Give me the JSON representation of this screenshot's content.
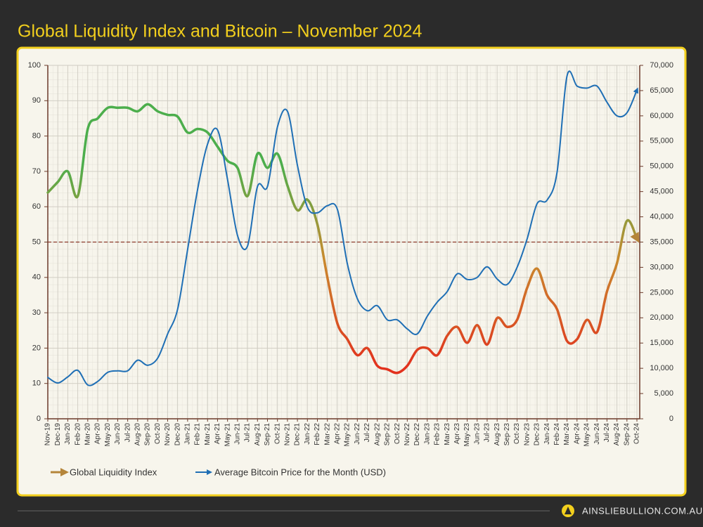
{
  "chart_data": {
    "type": "line",
    "title": "Global Liquidity Index and Bitcoin – November 2024",
    "categories": [
      "Nov-19",
      "Dec-19",
      "Jan-20",
      "Feb-20",
      "Mar-20",
      "Apr-20",
      "May-20",
      "Jun-20",
      "Jul-20",
      "Aug-20",
      "Sep-20",
      "Oct-20",
      "Nov-20",
      "Dec-20",
      "Jan-21",
      "Feb-21",
      "Mar-21",
      "Apr-21",
      "May-21",
      "Jun-21",
      "Jul-21",
      "Aug-21",
      "Sep-21",
      "Oct-21",
      "Nov-21",
      "Dec-21",
      "Jan-22",
      "Feb-22",
      "Mar-22",
      "Apr-22",
      "May-22",
      "Jun-22",
      "Jul-22",
      "Aug-22",
      "Sep-22",
      "Oct-22",
      "Nov-22",
      "Dec-22",
      "Jan-23",
      "Feb-23",
      "Mar-23",
      "Apr-23",
      "May-23",
      "Jun-23",
      "Jul-23",
      "Aug-23",
      "Sep-23",
      "Oct-23",
      "Nov-23",
      "Dec-23",
      "Jan-24",
      "Feb-24",
      "Mar-24",
      "Apr-24",
      "May-24",
      "Jun-24",
      "Jul-24",
      "Aug-24",
      "Sep-24",
      "Oct-24"
    ],
    "series": [
      {
        "name": "Global Liquidity Index",
        "color": "#b5853a",
        "axis": "y",
        "gradient": [
          {
            "value": 15,
            "color": "#e2311d"
          },
          {
            "value": 45,
            "color": "#c98a2e"
          },
          {
            "value": 72,
            "color": "#4cae4c"
          }
        ],
        "values": [
          64,
          67,
          70,
          63,
          82,
          85,
          88,
          88,
          88,
          87,
          89,
          87,
          86,
          85.5,
          81,
          82,
          81,
          77,
          73,
          71,
          63,
          75,
          71,
          75,
          66,
          59,
          62,
          55,
          40,
          27,
          22.5,
          18,
          20,
          15,
          14,
          13,
          15,
          19.5,
          20,
          18,
          23.5,
          26,
          21.5,
          26.5,
          21,
          28.5,
          26,
          28,
          37,
          42.5,
          35,
          31,
          22,
          22.5,
          28,
          24.5,
          36,
          44,
          56,
          51
        ]
      },
      {
        "name": "Average Bitcoin Price for the Month (USD)",
        "color": "#1f6fb5",
        "axis": "y2",
        "values": [
          8200,
          7100,
          8300,
          9600,
          6700,
          7400,
          9200,
          9500,
          9500,
          11600,
          10600,
          12000,
          16800,
          21700,
          33500,
          45400,
          54400,
          57200,
          47400,
          36300,
          34200,
          46000,
          46000,
          57800,
          60900,
          50200,
          41900,
          40800,
          42200,
          41500,
          30700,
          23800,
          21400,
          22400,
          19600,
          19600,
          17800,
          16800,
          20300,
          23100,
          25200,
          28700,
          27600,
          28000,
          30100,
          27700,
          26600,
          30000,
          35600,
          42600,
          43300,
          48800,
          67900,
          65900,
          65500,
          65900,
          62700,
          60000,
          60600,
          65100
        ]
      }
    ],
    "ylim": [
      0,
      100
    ],
    "yticks": [
      0,
      10,
      20,
      30,
      40,
      50,
      60,
      70,
      80,
      90,
      100
    ],
    "y2lim": [
      0,
      70000
    ],
    "y2ticks": [
      0,
      {
        "value": 5000,
        "label": "5,000"
      },
      {
        "value": 10000,
        "label": "10,000"
      },
      {
        "value": 15000,
        "label": "15,000"
      },
      {
        "value": 20000,
        "label": "20,000"
      },
      {
        "value": 25000,
        "label": "25,000"
      },
      {
        "value": 30000,
        "label": "30,000"
      },
      {
        "value": 35000,
        "label": "35,000"
      },
      {
        "value": 40000,
        "label": "40,000"
      },
      {
        "value": 45000,
        "label": "45,000"
      },
      {
        "value": 50000,
        "label": "50,000"
      },
      {
        "value": 55000,
        "label": "55,000"
      },
      {
        "value": 60000,
        "label": "60,000"
      },
      {
        "value": 65000,
        "label": "65,000"
      },
      {
        "value": 70000,
        "label": "70,000"
      }
    ],
    "grid": true,
    "reference_line": {
      "value": 50,
      "color": "#8b3a2a"
    },
    "legend": "bottom"
  },
  "footer": {
    "brand": "AINSLIEBULLION.COM.AU"
  }
}
